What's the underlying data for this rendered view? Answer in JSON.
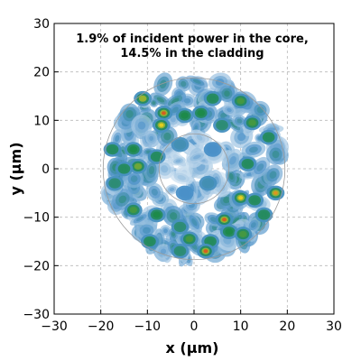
{
  "chart_data": {
    "type": "heatmap",
    "title": "",
    "xlabel": "x (µm)",
    "ylabel": "y (µm)",
    "xlim": [
      -30,
      30
    ],
    "ylim": [
      -30,
      30
    ],
    "xticks": [
      -30,
      -20,
      -10,
      0,
      10,
      20,
      30
    ],
    "yticks": [
      -30,
      -20,
      -10,
      0,
      10,
      20,
      30
    ],
    "grid": true,
    "annotation": [
      "1.9% of incident power in the core,",
      "14.5% in the cladding"
    ],
    "core_radius": 7.5,
    "cladding_radius": 19.5,
    "colorscale": [
      "#ffffff",
      "#4a90c8",
      "#1e8a4a",
      "#e8d020",
      "#d02020"
    ],
    "hotspots": [
      {
        "x": -11,
        "y": 14.5,
        "v": 0.75
      },
      {
        "x": -6.5,
        "y": 11.5,
        "v": 0.95
      },
      {
        "x": -7,
        "y": 9,
        "v": 0.85
      },
      {
        "x": -2,
        "y": 11,
        "v": 0.6
      },
      {
        "x": 1.5,
        "y": 11.5,
        "v": 0.6
      },
      {
        "x": 4,
        "y": 14.5,
        "v": 0.55
      },
      {
        "x": 10,
        "y": 14,
        "v": 0.65
      },
      {
        "x": 12.5,
        "y": 9.5,
        "v": 0.65
      },
      {
        "x": 16,
        "y": 6.5,
        "v": 0.55
      },
      {
        "x": -17.5,
        "y": 4,
        "v": 0.55
      },
      {
        "x": -13,
        "y": 4,
        "v": 0.6
      },
      {
        "x": -8,
        "y": 2.5,
        "v": 0.55
      },
      {
        "x": -12,
        "y": 0.5,
        "v": 0.7
      },
      {
        "x": -15,
        "y": 0,
        "v": 0.55
      },
      {
        "x": -17,
        "y": -3,
        "v": 0.5
      },
      {
        "x": 11.5,
        "y": 1,
        "v": 0.55
      },
      {
        "x": 17.5,
        "y": -5,
        "v": 0.9
      },
      {
        "x": 10,
        "y": -6,
        "v": 0.85
      },
      {
        "x": 13,
        "y": -6.5,
        "v": 0.55
      },
      {
        "x": 15,
        "y": -9.5,
        "v": 0.55
      },
      {
        "x": -13,
        "y": -8.5,
        "v": 0.65
      },
      {
        "x": -8,
        "y": -9.5,
        "v": 0.6
      },
      {
        "x": -3,
        "y": -12,
        "v": 0.5
      },
      {
        "x": 6.5,
        "y": -10.5,
        "v": 0.95
      },
      {
        "x": 7.5,
        "y": -13,
        "v": 0.6
      },
      {
        "x": 3.5,
        "y": -15,
        "v": 0.55
      },
      {
        "x": -1,
        "y": -14.5,
        "v": 0.65
      },
      {
        "x": 10.5,
        "y": -13.5,
        "v": 0.65
      },
      {
        "x": -9.5,
        "y": -15,
        "v": 0.55
      },
      {
        "x": 2.5,
        "y": -17,
        "v": 0.95
      },
      {
        "x": -3,
        "y": -17,
        "v": 0.5
      },
      {
        "x": 6,
        "y": 9,
        "v": 0.5
      },
      {
        "x": -3,
        "y": 5,
        "v": 0.35
      },
      {
        "x": 3,
        "y": -3,
        "v": 0.35
      },
      {
        "x": -2,
        "y": -5,
        "v": 0.3
      },
      {
        "x": 4,
        "y": 4,
        "v": 0.3
      }
    ]
  }
}
